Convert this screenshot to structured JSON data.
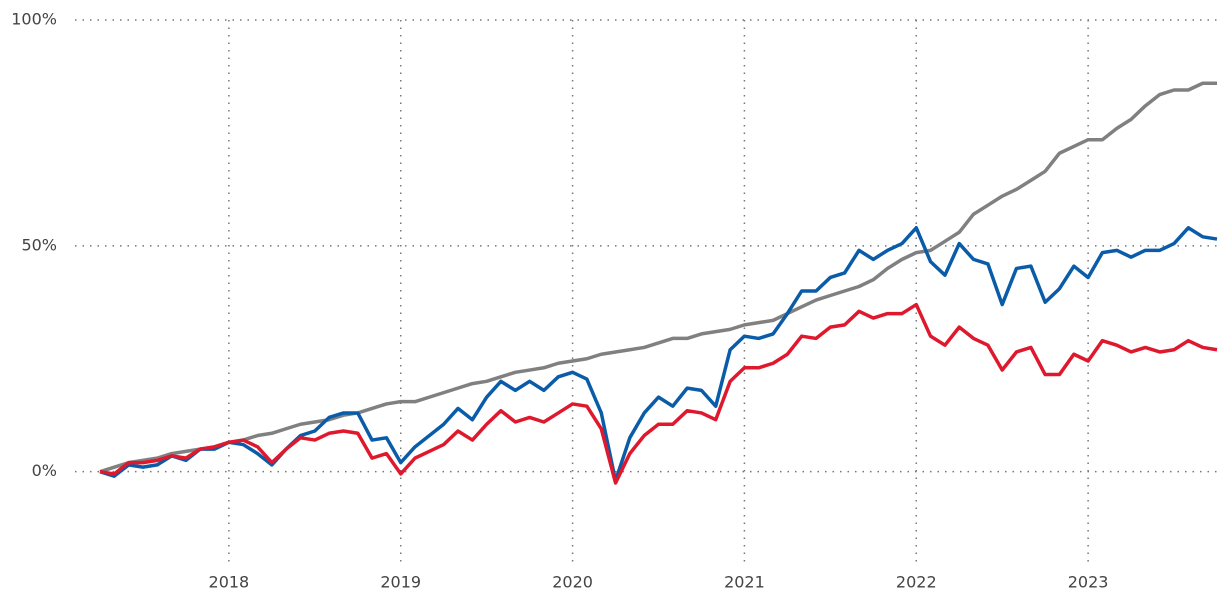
{
  "chart_data": {
    "type": "line",
    "x": [
      2017.25,
      2017.333,
      2017.417,
      2017.5,
      2017.583,
      2017.667,
      2017.75,
      2017.833,
      2017.917,
      2018,
      2018.083,
      2018.167,
      2018.25,
      2018.333,
      2018.417,
      2018.5,
      2018.583,
      2018.667,
      2018.75,
      2018.833,
      2018.917,
      2019,
      2019.083,
      2019.167,
      2019.25,
      2019.333,
      2019.417,
      2019.5,
      2019.583,
      2019.667,
      2019.75,
      2019.833,
      2019.917,
      2020,
      2020.083,
      2020.167,
      2020.25,
      2020.333,
      2020.417,
      2020.5,
      2020.583,
      2020.667,
      2020.75,
      2020.833,
      2020.917,
      2021,
      2021.083,
      2021.167,
      2021.25,
      2021.333,
      2021.417,
      2021.5,
      2021.583,
      2021.667,
      2021.75,
      2021.833,
      2021.917,
      2022,
      2022.083,
      2022.167,
      2022.25,
      2022.333,
      2022.417,
      2022.5,
      2022.583,
      2022.667,
      2022.75,
      2022.833,
      2022.917,
      2023,
      2023.083,
      2023.167,
      2023.25,
      2023.333,
      2023.417,
      2023.5,
      2023.583,
      2023.667,
      2023.75
    ],
    "series": [
      {
        "color": "#808080",
        "values": [
          0,
          1,
          2,
          2.5,
          3,
          4,
          4.5,
          5,
          5.5,
          6.5,
          7,
          8,
          8.5,
          9.5,
          10.5,
          11,
          11.5,
          12.5,
          13,
          14,
          15,
          15.5,
          15.5,
          16.5,
          17.5,
          18.5,
          19.5,
          20,
          21,
          22,
          22.5,
          23,
          24,
          24.5,
          25,
          26,
          26.5,
          27,
          27.5,
          28.5,
          29.5,
          29.5,
          30.5,
          31,
          31.5,
          32.5,
          33,
          33.5,
          35,
          36.5,
          38,
          39,
          40,
          41,
          42.5,
          45,
          47,
          48.5,
          49,
          51,
          53,
          57,
          59,
          61,
          62.5,
          64.5,
          66.5,
          70.5,
          72,
          73.5,
          73.5,
          76,
          78,
          81,
          83.5,
          84.5,
          84.5,
          86,
          86
        ]
      },
      {
        "color": "#0a5ca8",
        "values": [
          0,
          -1,
          1.5,
          1,
          1.5,
          3.5,
          2.5,
          5,
          5,
          6.5,
          6,
          4,
          1.5,
          5,
          8,
          9,
          12,
          13,
          13,
          7,
          7.5,
          2,
          5.5,
          8,
          10.5,
          14,
          11.5,
          16.5,
          20,
          18,
          20,
          18,
          21,
          22,
          20.5,
          13,
          -2,
          7.5,
          13,
          16.5,
          14.5,
          18.5,
          18,
          14.5,
          27,
          30,
          29.5,
          30.5,
          35,
          40,
          40,
          43,
          44,
          49,
          47,
          49,
          50.5,
          54,
          46.5,
          43.5,
          50.5,
          47,
          46,
          37,
          45,
          45.5,
          37.5,
          40.5,
          45.5,
          43,
          48.5,
          49,
          47.5,
          49,
          49,
          50.5,
          54,
          52,
          51.5
        ]
      },
      {
        "color": "#e0182d",
        "values": [
          0,
          -0.5,
          2,
          2,
          2.5,
          3.5,
          3,
          5,
          5.5,
          6.5,
          7,
          5.5,
          2,
          5,
          7.5,
          7,
          8.5,
          9,
          8.5,
          3,
          4,
          -0.5,
          3,
          4.5,
          6,
          9,
          7,
          10.5,
          13.5,
          11,
          12,
          11,
          13,
          15,
          14.5,
          9.5,
          -2.5,
          4,
          8,
          10.5,
          10.5,
          13.5,
          13,
          11.5,
          20,
          23,
          23,
          24,
          26,
          30,
          29.5,
          32,
          32.5,
          35.5,
          34,
          35,
          35,
          37,
          30,
          28,
          32,
          29.5,
          28,
          22.5,
          26.5,
          27.5,
          21.5,
          21.5,
          26,
          24.5,
          29,
          28,
          26.5,
          27.5,
          26.5,
          27,
          29,
          27.5,
          27
        ]
      }
    ],
    "xlim": [
      2017.25,
      2023.75
    ],
    "xticks": [
      2018,
      2019,
      2020,
      2021,
      2022,
      2023
    ],
    "ylim": [
      -20,
      100
    ],
    "yticks": [
      {
        "value": 0,
        "label": "0%"
      },
      {
        "value": 50,
        "label": "50%"
      },
      {
        "value": 100,
        "label": "100%"
      }
    ],
    "grid": true
  }
}
